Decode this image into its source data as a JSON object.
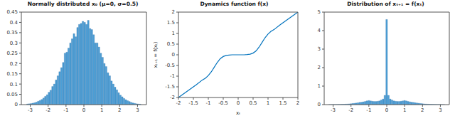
{
  "chart_data": [
    {
      "type": "histogram",
      "title": "Normally distributed x₀ (μ=0, σ=0.5)",
      "color": "#4d9fd6",
      "bins": [
        -3.2,
        -3.1,
        -3,
        -2.9,
        -2.8,
        -2.7,
        -2.6,
        -2.5,
        -2.4,
        -2.3,
        -2.2,
        -2.1,
        -2,
        -1.9,
        -1.8,
        -1.7,
        -1.6,
        -1.5,
        -1.4,
        -1.3,
        -1.2,
        -1.1,
        -1,
        -0.9,
        -0.8,
        -0.7,
        -0.6,
        -0.5,
        -0.4,
        -0.3,
        -0.2,
        -0.1,
        0,
        0.1,
        0.2,
        0.3,
        0.4,
        0.5,
        0.6,
        0.7,
        0.8,
        0.9,
        1,
        1.1,
        1.2,
        1.3,
        1.4,
        1.5,
        1.6,
        1.7,
        1.8,
        1.9,
        2,
        2.1,
        2.2,
        2.3,
        2.4,
        2.5,
        2.6,
        2.7,
        2.8,
        2.9,
        3,
        3.1,
        3.2
      ],
      "values": [
        0.003,
        0.004,
        0.005,
        0.007,
        0.009,
        0.012,
        0.016,
        0.02,
        0.025,
        0.032,
        0.04,
        0.048,
        0.06,
        0.07,
        0.088,
        0.1,
        0.12,
        0.14,
        0.16,
        0.18,
        0.205,
        0.25,
        0.255,
        0.275,
        0.3,
        0.32,
        0.345,
        0.33,
        0.375,
        0.39,
        0.395,
        0.405,
        0.4,
        0.39,
        0.41,
        0.37,
        0.365,
        0.34,
        0.3,
        0.3,
        0.28,
        0.25,
        0.23,
        0.2,
        0.185,
        0.155,
        0.14,
        0.115,
        0.1,
        0.085,
        0.072,
        0.058,
        0.046,
        0.038,
        0.03,
        0.024,
        0.019,
        0.015,
        0.011,
        0.008,
        0.006,
        0.004,
        0.003,
        0.002
      ],
      "xlim": [
        -3.5,
        3.5
      ],
      "xticks": [
        -3,
        -2,
        -1,
        0,
        1,
        2,
        3
      ],
      "ylim": [
        0,
        0.45
      ],
      "yticks": [
        0,
        0.05,
        0.1,
        0.15,
        0.2,
        0.25,
        0.3,
        0.35,
        0.4,
        0.45
      ]
    },
    {
      "type": "line",
      "title": "Dynamics function f(x)",
      "color": "#0072bd",
      "xlabel": "xₜ",
      "ylabel": "xₜ₊₁ = f(xₜ)",
      "x": [
        -2,
        -1.8,
        -1.6,
        -1.4,
        -1.2,
        -1.1,
        -1,
        -0.9,
        -0.8,
        -0.7,
        -0.6,
        -0.5,
        -0.4,
        -0.3,
        -0.2,
        -0.1,
        0,
        0.1,
        0.2,
        0.3,
        0.4,
        0.5,
        0.6,
        0.7,
        0.8,
        0.9,
        1,
        1.1,
        1.2,
        1.4,
        1.6,
        1.8,
        2
      ],
      "values": [
        -2,
        -1.8,
        -1.6,
        -1.4,
        -1.18,
        -1.1,
        -0.97,
        -0.8,
        -0.58,
        -0.36,
        -0.18,
        -0.08,
        -0.03,
        -0.01,
        0,
        0,
        0,
        0,
        0,
        0.01,
        0.03,
        0.08,
        0.18,
        0.36,
        0.58,
        0.8,
        0.97,
        1.1,
        1.18,
        1.4,
        1.6,
        1.8,
        2
      ],
      "xlim": [
        -2,
        2
      ],
      "xticks": [
        -2,
        -1.5,
        -1,
        -0.5,
        0,
        0.5,
        1,
        1.5,
        2
      ],
      "ylim": [
        -2,
        2
      ],
      "yticks": [
        -2,
        -1.5,
        -1,
        -0.5,
        0,
        0.5,
        1,
        1.5,
        2
      ]
    },
    {
      "type": "histogram",
      "title": "Distribution of xₜ₊₁ = f(xₜ)",
      "color": "#4d9fd6",
      "bins": [
        -3.25,
        -3.15,
        -3.05,
        -2.95,
        -2.85,
        -2.75,
        -2.65,
        -2.55,
        -2.45,
        -2.35,
        -2.25,
        -2.15,
        -2.05,
        -1.95,
        -1.85,
        -1.75,
        -1.65,
        -1.55,
        -1.45,
        -1.35,
        -1.25,
        -1.15,
        -1.05,
        -0.95,
        -0.85,
        -0.75,
        -0.65,
        -0.55,
        -0.45,
        -0.35,
        -0.25,
        -0.15,
        -0.05,
        0.05,
        0.15,
        0.25,
        0.35,
        0.45,
        0.55,
        0.65,
        0.75,
        0.85,
        0.95,
        1.05,
        1.15,
        1.25,
        1.35,
        1.45,
        1.55,
        1.65,
        1.75,
        1.85,
        1.95,
        2.05,
        2.15,
        2.25,
        2.35,
        2.45,
        2.55,
        2.65,
        2.75,
        2.85,
        2.95,
        3.05,
        3.15,
        3.25
      ],
      "values": [
        0.001,
        0.002,
        0.003,
        0.004,
        0.006,
        0.008,
        0.011,
        0.015,
        0.019,
        0.024,
        0.03,
        0.038,
        0.047,
        0.06,
        0.07,
        0.085,
        0.1,
        0.12,
        0.13,
        0.15,
        0.17,
        0.2,
        0.22,
        0.2,
        0.18,
        0.17,
        0.17,
        0.18,
        0.2,
        0.25,
        0.3,
        0.5,
        4.6,
        0.5,
        0.3,
        0.25,
        0.2,
        0.18,
        0.17,
        0.17,
        0.18,
        0.2,
        0.22,
        0.2,
        0.17,
        0.15,
        0.13,
        0.12,
        0.1,
        0.085,
        0.07,
        0.06,
        0.047,
        0.038,
        0.03,
        0.024,
        0.019,
        0.015,
        0.011,
        0.008,
        0.006,
        0.004,
        0.003,
        0.002,
        0.001
      ],
      "xlim": [
        -3.5,
        3.5
      ],
      "xticks": [
        -3,
        -2,
        -1,
        0,
        1,
        2,
        3
      ],
      "ylim": [
        0,
        5
      ],
      "yticks": [
        0,
        1,
        2,
        3,
        4,
        5
      ]
    }
  ]
}
